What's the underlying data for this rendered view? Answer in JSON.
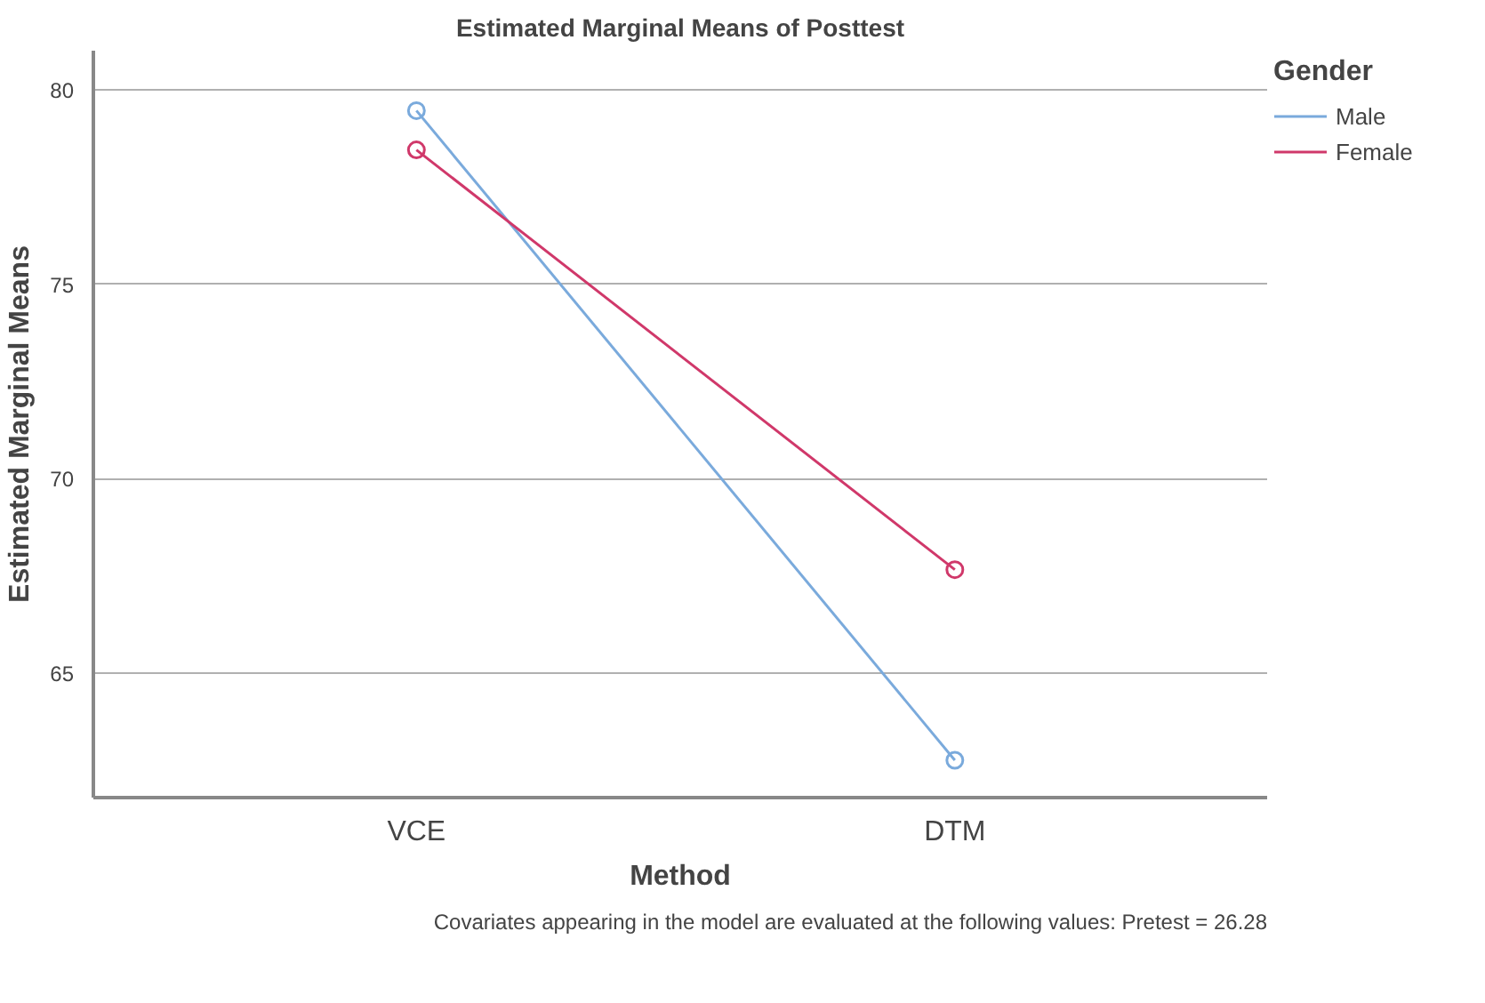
{
  "chart_data": {
    "type": "line",
    "title": "Estimated Marginal Means of Posttest",
    "xlabel": "Method",
    "ylabel": "Estimated Marginal Means",
    "legend_title": "Gender",
    "categories": [
      "VCE",
      "DTM"
    ],
    "series": [
      {
        "name": "Male",
        "color": "#7aaadc",
        "values": [
          79.46,
          62.76
        ]
      },
      {
        "name": "Female",
        "color": "#d0386a",
        "values": [
          78.45,
          67.66
        ]
      }
    ],
    "ylim": [
      61.8,
      81.0
    ],
    "yticks": [
      65,
      70,
      75,
      80
    ],
    "grid": "y",
    "legend": "top right",
    "marker": "circle",
    "line_style": "solid",
    "annotations": [
      "Covariates appearing in the model are evaluated at the following values: Pretest = 26.28"
    ]
  }
}
